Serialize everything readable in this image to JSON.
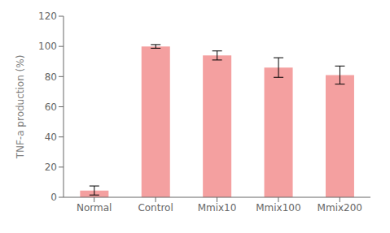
{
  "chart_data": {
    "type": "bar",
    "categories": [
      "Normal",
      "Control",
      "Mmix10",
      "Mmix100",
      "Mmix200"
    ],
    "values": [
      4.5,
      100.0,
      94.0,
      86.0,
      81.0
    ],
    "errors": [
      3.0,
      1.2,
      3.0,
      6.5,
      6.0
    ],
    "color": "#F4A0A0",
    "ylabel": "TNF-a production  (%)",
    "ylim": [
      0,
      120
    ],
    "yticks": [
      0,
      20,
      40,
      60,
      80,
      100,
      120
    ],
    "grid": false
  }
}
